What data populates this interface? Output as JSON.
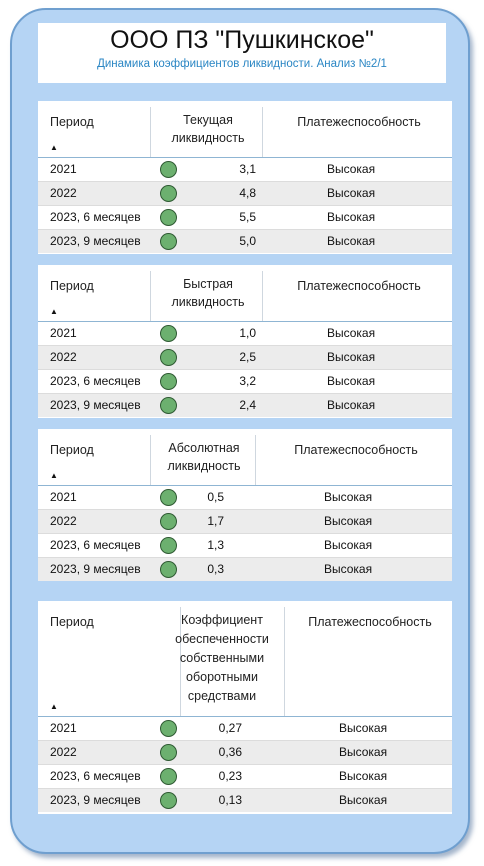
{
  "header": {
    "title": "ООО ПЗ \"Пушкинское\"",
    "subtitle": "Динамика коэффициентов ликвидности. Анализ №2/1"
  },
  "colors": {
    "frame": "#b5d4f4",
    "status_good": "#6cb06f",
    "subtitle": "#2a86c4"
  },
  "tables": [
    {
      "col_period": "Период",
      "col_coef": "Текущая ликвидность",
      "col_pay": "Платежеспособность",
      "rows": [
        {
          "period": "2021",
          "value": "3,1",
          "status": "Высокая"
        },
        {
          "period": "2022",
          "value": "4,8",
          "status": "Высокая"
        },
        {
          "period": "2023, 6 месяцев",
          "value": "5,5",
          "status": "Высокая"
        },
        {
          "period": "2023, 9 месяцев",
          "value": "5,0",
          "status": "Высокая"
        }
      ]
    },
    {
      "col_period": "Период",
      "col_coef": "Быстрая ликвидность",
      "col_pay": "Платежеспособность",
      "rows": [
        {
          "period": "2021",
          "value": "1,0",
          "status": "Высокая"
        },
        {
          "period": "2022",
          "value": "2,5",
          "status": "Высокая"
        },
        {
          "period": "2023, 6 месяцев",
          "value": "3,2",
          "status": "Высокая"
        },
        {
          "period": "2023, 9 месяцев",
          "value": "2,4",
          "status": "Высокая"
        }
      ]
    },
    {
      "col_period": "Период",
      "col_coef": "Абсолютная ликвидность",
      "col_pay": "Платежеспособность",
      "rows": [
        {
          "period": "2021",
          "value": "0,5",
          "status": "Высокая"
        },
        {
          "period": "2022",
          "value": "1,7",
          "status": "Высокая"
        },
        {
          "period": "2023, 6 месяцев",
          "value": "1,3",
          "status": "Высокая"
        },
        {
          "period": "2023, 9 месяцев",
          "value": "0,3",
          "status": "Высокая"
        }
      ]
    },
    {
      "col_period": "Период",
      "col_coef": "Коэффициент обеспеченности собственными оборотными средствами",
      "col_pay": "Платежеспособность",
      "rows": [
        {
          "period": "2021",
          "value": "0,27",
          "status": "Высокая"
        },
        {
          "period": "2022",
          "value": "0,36",
          "status": "Высокая"
        },
        {
          "period": "2023, 6 месяцев",
          "value": "0,23",
          "status": "Высокая"
        },
        {
          "period": "2023, 9 месяцев",
          "value": "0,13",
          "status": "Высокая"
        }
      ]
    }
  ]
}
